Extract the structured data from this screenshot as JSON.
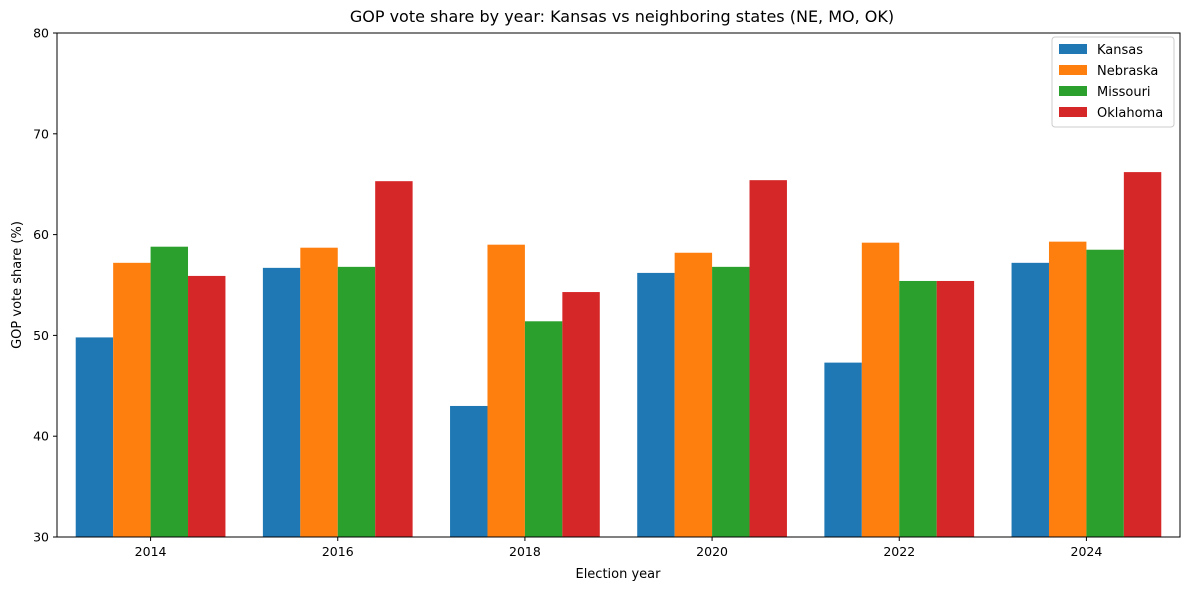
{
  "chart_data": {
    "type": "bar",
    "title": "GOP vote share by year: Kansas vs neighboring states (NE, MO, OK)",
    "xlabel": "Election year",
    "ylabel": "GOP vote share (%)",
    "categories": [
      "2014",
      "2016",
      "2018",
      "2020",
      "2022",
      "2024"
    ],
    "ylim": [
      30,
      80
    ],
    "yticks": [
      "30",
      "40",
      "50",
      "60",
      "70",
      "80"
    ],
    "grid": false,
    "legend_position": "top-right",
    "series": [
      {
        "name": "Kansas",
        "color": "#1f77b4",
        "values": [
          49.8,
          56.7,
          43.0,
          56.2,
          47.3,
          57.2
        ]
      },
      {
        "name": "Nebraska",
        "color": "#ff7f0e",
        "values": [
          57.2,
          58.7,
          59.0,
          58.2,
          59.2,
          59.3
        ]
      },
      {
        "name": "Missouri",
        "color": "#2ca02c",
        "values": [
          58.8,
          56.8,
          51.4,
          56.8,
          55.4,
          58.5
        ]
      },
      {
        "name": "Oklahoma",
        "color": "#d62728",
        "values": [
          55.9,
          65.3,
          54.3,
          65.4,
          55.4,
          66.2
        ]
      }
    ]
  }
}
